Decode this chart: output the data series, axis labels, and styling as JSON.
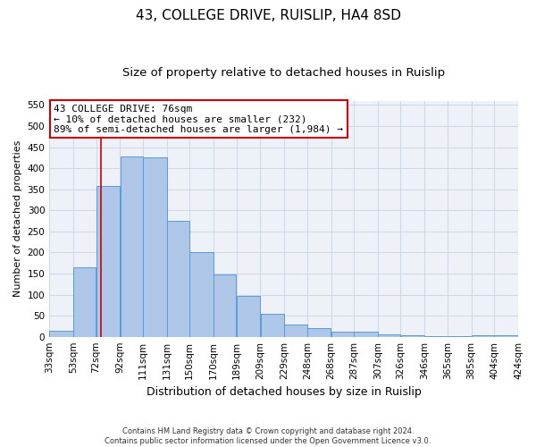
{
  "title": "43, COLLEGE DRIVE, RUISLIP, HA4 8SD",
  "subtitle": "Size of property relative to detached houses in Ruislip",
  "xlabel": "Distribution of detached houses by size in Ruislip",
  "ylabel": "Number of detached properties",
  "footnote": "Contains HM Land Registry data © Crown copyright and database right 2024.\nContains public sector information licensed under the Open Government Licence v3.0.",
  "bar_left_edges": [
    33,
    53,
    72,
    92,
    111,
    131,
    150,
    170,
    189,
    209,
    229,
    248,
    268,
    287,
    307,
    326,
    346,
    365,
    385,
    404
  ],
  "bar_widths": [
    20,
    19,
    20,
    19,
    20,
    19,
    20,
    19,
    20,
    20,
    19,
    20,
    19,
    20,
    19,
    20,
    19,
    20,
    19,
    20
  ],
  "bar_heights": [
    15,
    165,
    357,
    428,
    425,
    275,
    200,
    148,
    97,
    54,
    30,
    20,
    12,
    12,
    6,
    3,
    2,
    1,
    3,
    4
  ],
  "bar_color": "#aec6e8",
  "bar_edgecolor": "#5b9bd5",
  "tick_labels": [
    "33sqm",
    "53sqm",
    "72sqm",
    "92sqm",
    "111sqm",
    "131sqm",
    "150sqm",
    "170sqm",
    "189sqm",
    "209sqm",
    "229sqm",
    "248sqm",
    "268sqm",
    "287sqm",
    "307sqm",
    "326sqm",
    "346sqm",
    "365sqm",
    "385sqm",
    "404sqm",
    "424sqm"
  ],
  "ylim": [
    0,
    560
  ],
  "yticks": [
    0,
    50,
    100,
    150,
    200,
    250,
    300,
    350,
    400,
    450,
    500,
    550
  ],
  "vline_x": 76,
  "vline_color": "#cc0000",
  "annotation_text": "43 COLLEGE DRIVE: 76sqm\n← 10% of detached houses are smaller (232)\n89% of semi-detached houses are larger (1,984) →",
  "annotation_box_color": "#cc0000",
  "grid_color": "#d0d8e8",
  "bg_color": "#eef2f8",
  "title_fontsize": 11,
  "subtitle_fontsize": 9.5,
  "ylabel_fontsize": 8,
  "xlabel_fontsize": 9,
  "tick_fontsize": 7.5,
  "annot_fontsize": 8
}
